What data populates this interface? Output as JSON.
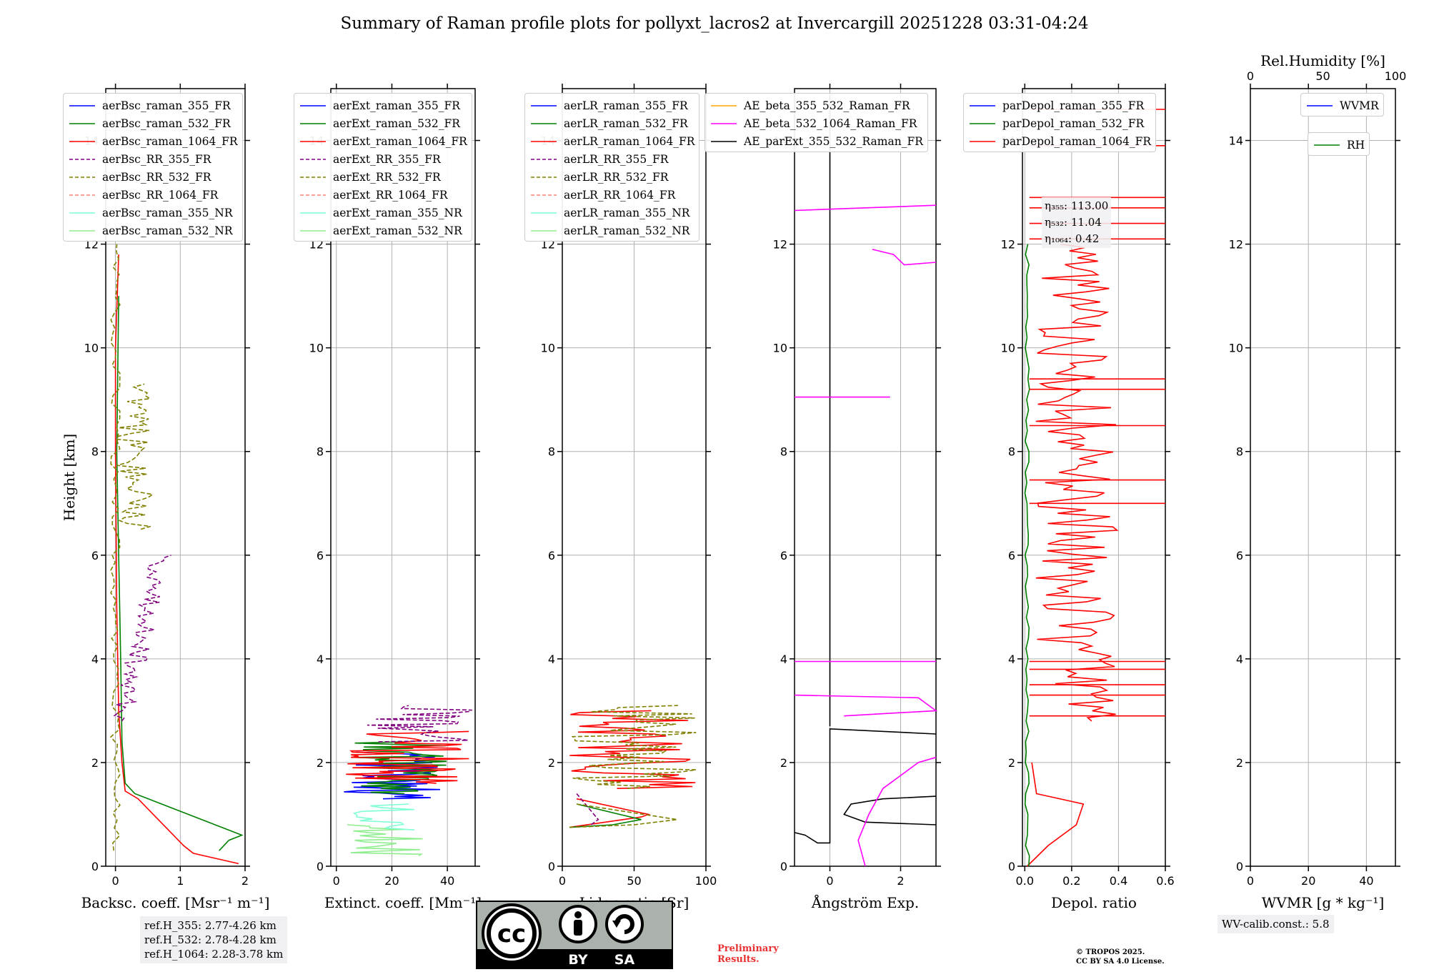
{
  "title": "Summary of Raman profile plots for pollyxt_lacros2 at Invercargill 20251228 03:31-04:24",
  "chart_data": [
    {
      "type": "line",
      "panel": "backscatter",
      "xlabel": "Backsc. coeff. [Msr⁻¹ m⁻¹]",
      "ylabel": "Height [km]",
      "xlim": [
        -0.15,
        2
      ],
      "ylim": [
        0,
        15
      ],
      "xticks": [
        0,
        1,
        2
      ],
      "yticks": [
        0,
        2,
        4,
        6,
        8,
        10,
        12,
        14
      ],
      "legend": [
        "aerBsc_raman_355_FR",
        "aerBsc_raman_532_FR",
        "aerBsc_raman_1064_FR",
        "aerBsc_RR_355_FR",
        "aerBsc_RR_532_FR",
        "aerBsc_RR_1064_FR",
        "aerBsc_raman_355_NR",
        "aerBsc_raman_532_NR"
      ]
    },
    {
      "type": "line",
      "panel": "extinction",
      "xlabel": "Extinct. coeff. [Mm⁻¹]",
      "xlim": [
        -2,
        50
      ],
      "ylim": [
        0,
        15
      ],
      "xticks": [
        0,
        20,
        40
      ],
      "yticks": [
        0,
        2,
        4,
        6,
        8,
        10,
        12,
        14
      ],
      "legend": [
        "aerExt_raman_355_FR",
        "aerExt_raman_532_FR",
        "aerExt_raman_1064_FR",
        "aerExt_RR_355_FR",
        "aerExt_RR_532_FR",
        "aerExt_RR_1064_FR",
        "aerExt_raman_355_NR",
        "aerExt_raman_532_NR"
      ]
    },
    {
      "type": "line",
      "panel": "lidar_ratio",
      "xlabel": "Lidar ratio [Sr]",
      "xlim": [
        0,
        100
      ],
      "ylim": [
        0,
        15
      ],
      "xticks": [
        0,
        50,
        100
      ],
      "yticks": [
        0,
        2,
        4,
        6,
        8,
        10,
        12,
        14
      ],
      "legend": [
        "aerLR_raman_355_FR",
        "aerLR_raman_532_FR",
        "aerLR_raman_1064_FR",
        "aerLR_RR_355_FR",
        "aerLR_RR_532_FR",
        "aerLR_RR_1064_FR",
        "aerLR_raman_355_NR",
        "aerLR_raman_532_NR"
      ]
    },
    {
      "type": "line",
      "panel": "angstrom",
      "xlabel": "Ångström Exp.",
      "xlim": [
        -1,
        3
      ],
      "ylim": [
        0,
        15
      ],
      "xticks": [
        0,
        2
      ],
      "yticks": [
        0,
        2,
        4,
        6,
        8,
        10,
        12,
        14
      ],
      "legend": [
        "AE_beta_355_532_Raman_FR",
        "AE_beta_532_1064_Raman_FR",
        "AE_parExt_355_532_Raman_FR"
      ]
    },
    {
      "type": "line",
      "panel": "depolarization",
      "xlabel": "Depol. ratio",
      "xlim": [
        -0.01,
        0.6
      ],
      "ylim": [
        0,
        15
      ],
      "xticks": [
        0.0,
        0.2,
        0.4,
        0.6
      ],
      "xticklabels": [
        "0.0",
        "0.2",
        "0.4",
        "0.6"
      ],
      "yticks": [
        0,
        2,
        4,
        6,
        8,
        10,
        12,
        14
      ],
      "legend": [
        "parDepol_raman_355_FR",
        "parDepol_raman_532_FR",
        "parDepol_raman_1064_FR"
      ],
      "eta": [
        "113.00",
        "11.04",
        "0.42"
      ],
      "eta_labels": [
        "η₃₅₅: ",
        "η₅₃₂: ",
        "η₁₀₆₄: "
      ]
    },
    {
      "type": "line",
      "panel": "water_vapor",
      "xlabel": "WVMR [g * kg⁻¹]",
      "xlim": [
        0,
        50
      ],
      "ylim": [
        0,
        15
      ],
      "xticks": [
        0,
        20,
        40
      ],
      "yticks": [
        0,
        2,
        4,
        6,
        8,
        10,
        12,
        14
      ],
      "top_xlabel": "Rel.Humidity [%]",
      "top_xticks": [
        0,
        50,
        100
      ],
      "legend": [
        "WVMR",
        "RH"
      ]
    }
  ],
  "colors": {
    "blue": "#0000ff",
    "green": "#008000",
    "red": "#ff0000",
    "purple": "#800080",
    "olive": "#808000",
    "salmon": "#fa8072",
    "cyan": "#7fffd4",
    "lightgreen": "#90ee90",
    "orange": "#ffa500",
    "magenta": "#ff00ff",
    "black": "#000000",
    "grid": "#b0b0b0"
  },
  "ref_heights": [
    "ref.H_355: 2.77-4.26 km",
    "ref.H_532: 2.78-4.28 km",
    "ref.H_1064: 2.28-3.78 km"
  ],
  "wv_calib": "WV-calib.const.: 5.8",
  "preliminary": [
    "Preliminary",
    "Results."
  ],
  "copyright": [
    "© TROPOS 2025.",
    "CC BY SA 4.0 License."
  ],
  "cc_badge": {
    "cc": "cc",
    "by": "BY",
    "sa": "SA"
  }
}
